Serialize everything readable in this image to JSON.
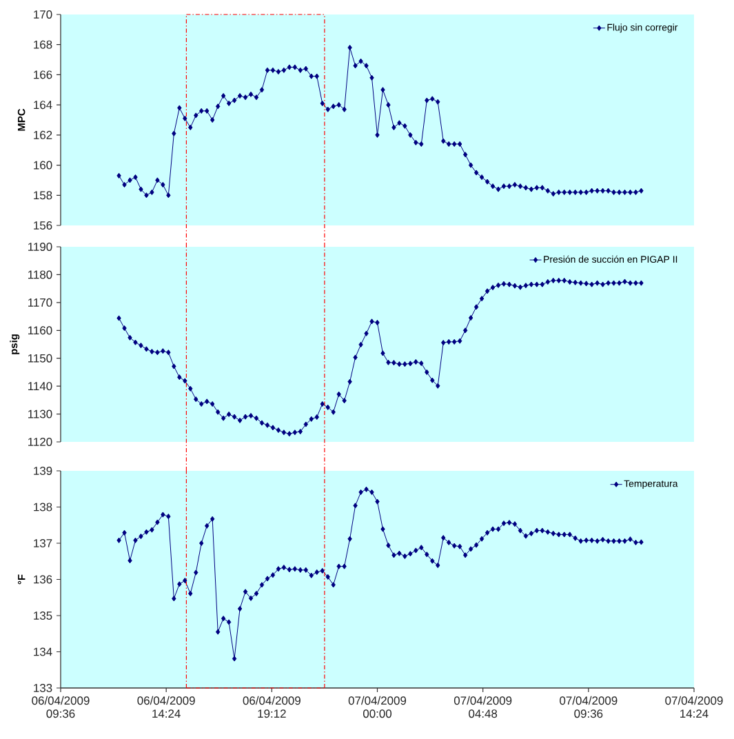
{
  "chart_data": [
    {
      "type": "line",
      "ylabel": "MPC",
      "legend": "top right",
      "marker": "diamond",
      "tick_labels": "y",
      "xlim": [
        "2009-04-06T09:36",
        "2009-04-07T14:24"
      ],
      "ylim": [
        156,
        170
      ],
      "yticks": [
        156,
        158,
        160,
        162,
        164,
        166,
        168,
        170
      ],
      "ref_lines": [
        {
          "axis": "x",
          "value": "2009-04-06T15:19",
          "color": "#ff0000",
          "line_style": "dashed"
        },
        {
          "axis": "x",
          "value": "2009-04-06T21:36",
          "color": "#ff0000",
          "line_style": "dashed"
        }
      ],
      "x": [
        "2009-04-06T12:15",
        "2009-04-06T12:30",
        "2009-04-06T12:45",
        "2009-04-06T13:00",
        "2009-04-06T13:15",
        "2009-04-06T13:30",
        "2009-04-06T13:45",
        "2009-04-06T14:00",
        "2009-04-06T14:15",
        "2009-04-06T14:30",
        "2009-04-06T14:45",
        "2009-04-06T15:00",
        "2009-04-06T15:15",
        "2009-04-06T15:30",
        "2009-04-06T15:45",
        "2009-04-06T16:00",
        "2009-04-06T16:15",
        "2009-04-06T16:30",
        "2009-04-06T16:45",
        "2009-04-06T17:00",
        "2009-04-06T17:15",
        "2009-04-06T17:30",
        "2009-04-06T17:45",
        "2009-04-06T18:00",
        "2009-04-06T18:15",
        "2009-04-06T18:30",
        "2009-04-06T18:45",
        "2009-04-06T19:00",
        "2009-04-06T19:15",
        "2009-04-06T19:30",
        "2009-04-06T19:45",
        "2009-04-06T20:00",
        "2009-04-06T20:15",
        "2009-04-06T20:30",
        "2009-04-06T20:45",
        "2009-04-06T21:00",
        "2009-04-06T21:15",
        "2009-04-06T21:30",
        "2009-04-06T21:45",
        "2009-04-06T22:00",
        "2009-04-06T22:15",
        "2009-04-06T22:30",
        "2009-04-06T22:45",
        "2009-04-06T23:00",
        "2009-04-06T23:15",
        "2009-04-06T23:30",
        "2009-04-06T23:45",
        "2009-04-07T00:00",
        "2009-04-07T00:15",
        "2009-04-07T00:30",
        "2009-04-07T00:45",
        "2009-04-07T01:00",
        "2009-04-07T01:15",
        "2009-04-07T01:30",
        "2009-04-07T01:45",
        "2009-04-07T02:00",
        "2009-04-07T02:15",
        "2009-04-07T02:30",
        "2009-04-07T02:45",
        "2009-04-07T03:00",
        "2009-04-07T03:15",
        "2009-04-07T03:30",
        "2009-04-07T03:45",
        "2009-04-07T04:00",
        "2009-04-07T04:15",
        "2009-04-07T04:30",
        "2009-04-07T04:45",
        "2009-04-07T05:00",
        "2009-04-07T05:15",
        "2009-04-07T05:30",
        "2009-04-07T05:45",
        "2009-04-07T06:00",
        "2009-04-07T06:15",
        "2009-04-07T06:30",
        "2009-04-07T06:45",
        "2009-04-07T07:00",
        "2009-04-07T07:15",
        "2009-04-07T07:30",
        "2009-04-07T07:45",
        "2009-04-07T08:00",
        "2009-04-07T08:15",
        "2009-04-07T08:30",
        "2009-04-07T08:45",
        "2009-04-07T09:00",
        "2009-04-07T09:15",
        "2009-04-07T09:30",
        "2009-04-07T09:45",
        "2009-04-07T10:00",
        "2009-04-07T10:15",
        "2009-04-07T10:30",
        "2009-04-07T10:45",
        "2009-04-07T11:00",
        "2009-04-07T11:15",
        "2009-04-07T11:30",
        "2009-04-07T11:45",
        "2009-04-07T12:00"
      ],
      "series": [
        {
          "name": "Flujo sin corregir",
          "color": "#000080",
          "values": [
            159.3,
            158.7,
            159.0,
            159.2,
            158.4,
            158.0,
            158.2,
            159.0,
            158.7,
            158.0,
            162.1,
            163.8,
            163.1,
            162.5,
            163.3,
            163.6,
            163.6,
            163.0,
            163.9,
            164.6,
            164.1,
            164.3,
            164.6,
            164.5,
            164.7,
            164.5,
            165.0,
            166.3,
            166.3,
            166.2,
            166.3,
            166.5,
            166.5,
            166.3,
            166.4,
            165.9,
            165.9,
            164.1,
            163.7,
            163.9,
            164.0,
            163.7,
            167.8,
            166.6,
            166.9,
            166.6,
            165.8,
            162.0,
            165.0,
            164.0,
            162.5,
            162.8,
            162.6,
            162.0,
            161.5,
            161.4,
            164.3,
            164.4,
            164.2,
            161.6,
            161.4,
            161.4,
            161.4,
            160.7,
            160.0,
            159.5,
            159.2,
            158.9,
            158.6,
            158.4,
            158.6,
            158.6,
            158.7,
            158.6,
            158.5,
            158.4,
            158.5,
            158.5,
            158.3,
            158.1,
            158.2,
            158.2,
            158.2,
            158.2,
            158.2,
            158.2,
            158.3,
            158.3,
            158.3,
            158.3,
            158.2,
            158.2,
            158.2,
            158.2,
            158.2,
            158.3
          ]
        }
      ]
    },
    {
      "type": "line",
      "ylabel": "psig",
      "legend": "top right",
      "marker": "diamond",
      "tick_labels": "y",
      "xlim": [
        "2009-04-06T09:36",
        "2009-04-07T14:24"
      ],
      "ylim": [
        1120,
        1190
      ],
      "yticks": [
        1120,
        1130,
        1140,
        1150,
        1160,
        1170,
        1180,
        1190
      ],
      "ref_lines": [
        {
          "axis": "x",
          "value": "2009-04-06T15:19",
          "color": "#ff0000",
          "line_style": "dashed"
        },
        {
          "axis": "x",
          "value": "2009-04-06T21:36",
          "color": "#ff0000",
          "line_style": "dashed"
        }
      ],
      "x": [
        "2009-04-06T12:15",
        "2009-04-06T12:30",
        "2009-04-06T12:45",
        "2009-04-06T13:00",
        "2009-04-06T13:15",
        "2009-04-06T13:30",
        "2009-04-06T13:45",
        "2009-04-06T14:00",
        "2009-04-06T14:15",
        "2009-04-06T14:30",
        "2009-04-06T14:45",
        "2009-04-06T15:00",
        "2009-04-06T15:15",
        "2009-04-06T15:30",
        "2009-04-06T15:45",
        "2009-04-06T16:00",
        "2009-04-06T16:15",
        "2009-04-06T16:30",
        "2009-04-06T16:45",
        "2009-04-06T17:00",
        "2009-04-06T17:15",
        "2009-04-06T17:30",
        "2009-04-06T17:45",
        "2009-04-06T18:00",
        "2009-04-06T18:15",
        "2009-04-06T18:30",
        "2009-04-06T18:45",
        "2009-04-06T19:00",
        "2009-04-06T19:15",
        "2009-04-06T19:30",
        "2009-04-06T19:45",
        "2009-04-06T20:00",
        "2009-04-06T20:15",
        "2009-04-06T20:30",
        "2009-04-06T20:45",
        "2009-04-06T21:00",
        "2009-04-06T21:15",
        "2009-04-06T21:30",
        "2009-04-06T21:45",
        "2009-04-06T22:00",
        "2009-04-06T22:15",
        "2009-04-06T22:30",
        "2009-04-06T22:45",
        "2009-04-06T23:00",
        "2009-04-06T23:15",
        "2009-04-06T23:30",
        "2009-04-06T23:45",
        "2009-04-07T00:00",
        "2009-04-07T00:15",
        "2009-04-07T00:30",
        "2009-04-07T00:45",
        "2009-04-07T01:00",
        "2009-04-07T01:15",
        "2009-04-07T01:30",
        "2009-04-07T01:45",
        "2009-04-07T02:00",
        "2009-04-07T02:15",
        "2009-04-07T02:30",
        "2009-04-07T02:45",
        "2009-04-07T03:00",
        "2009-04-07T03:15",
        "2009-04-07T03:30",
        "2009-04-07T03:45",
        "2009-04-07T04:00",
        "2009-04-07T04:15",
        "2009-04-07T04:30",
        "2009-04-07T04:45",
        "2009-04-07T05:00",
        "2009-04-07T05:15",
        "2009-04-07T05:30",
        "2009-04-07T05:45",
        "2009-04-07T06:00",
        "2009-04-07T06:15",
        "2009-04-07T06:30",
        "2009-04-07T06:45",
        "2009-04-07T07:00",
        "2009-04-07T07:15",
        "2009-04-07T07:30",
        "2009-04-07T07:45",
        "2009-04-07T08:00",
        "2009-04-07T08:15",
        "2009-04-07T08:30",
        "2009-04-07T08:45",
        "2009-04-07T09:00",
        "2009-04-07T09:15",
        "2009-04-07T09:30",
        "2009-04-07T09:45",
        "2009-04-07T10:00",
        "2009-04-07T10:15",
        "2009-04-07T10:30",
        "2009-04-07T10:45",
        "2009-04-07T11:00",
        "2009-04-07T11:15",
        "2009-04-07T11:30",
        "2009-04-07T11:45",
        "2009-04-07T12:00"
      ],
      "series": [
        {
          "name": "Presión de succión en PIGAP II",
          "color": "#000080",
          "values": [
            1164.4,
            1160.8,
            1157.4,
            1155.7,
            1154.6,
            1153.3,
            1152.4,
            1152.1,
            1152.6,
            1152.1,
            1147.1,
            1143.2,
            1141.9,
            1139.1,
            1135.3,
            1133.6,
            1134.5,
            1133.6,
            1130.7,
            1128.5,
            1129.9,
            1129.0,
            1127.7,
            1129.0,
            1129.4,
            1128.5,
            1126.8,
            1126.0,
            1125.1,
            1124.2,
            1123.4,
            1122.9,
            1123.4,
            1123.7,
            1126.3,
            1128.2,
            1128.9,
            1133.6,
            1132.4,
            1130.7,
            1137.1,
            1134.8,
            1141.6,
            1150.3,
            1154.9,
            1158.9,
            1163.2,
            1162.8,
            1151.8,
            1148.5,
            1148.4,
            1147.9,
            1147.9,
            1148.1,
            1148.7,
            1148.2,
            1145.0,
            1142.1,
            1140.1,
            1155.6,
            1155.9,
            1155.9,
            1156.2,
            1160.0,
            1164.5,
            1168.4,
            1171.4,
            1174.1,
            1175.4,
            1176.2,
            1176.7,
            1176.5,
            1176.0,
            1175.5,
            1176.1,
            1176.5,
            1176.5,
            1176.5,
            1177.4,
            1177.9,
            1177.9,
            1177.9,
            1177.4,
            1177.2,
            1177.0,
            1176.8,
            1176.5,
            1177.0,
            1176.5,
            1177.0,
            1177.0,
            1177.0,
            1177.5,
            1177.0,
            1177.0,
            1177.0
          ]
        }
      ]
    },
    {
      "type": "line",
      "ylabel": "°F",
      "legend": "top right",
      "marker": "diamond",
      "xlim": [
        "2009-04-06T09:36",
        "2009-04-07T14:24"
      ],
      "xticks": [
        {
          "value": "2009-04-06T09:36",
          "label": "06/04/2009 09:36"
        },
        {
          "value": "2009-04-06T14:24",
          "label": "06/04/2009 14:24"
        },
        {
          "value": "2009-04-06T19:12",
          "label": "06/04/2009 19:12"
        },
        {
          "value": "2009-04-07T00:00",
          "label": "07/04/2009 00:00"
        },
        {
          "value": "2009-04-07T04:48",
          "label": "07/04/2009 04:48"
        },
        {
          "value": "2009-04-07T09:36",
          "label": "07/04/2009 09:36"
        },
        {
          "value": "2009-04-07T14:24",
          "label": "07/04/2009 14:24"
        }
      ],
      "ylim": [
        133,
        139
      ],
      "yticks": [
        133,
        134,
        135,
        136,
        137,
        138,
        139
      ],
      "ref_lines": [
        {
          "axis": "x",
          "value": "2009-04-06T15:19",
          "color": "#ff0000",
          "line_style": "dashed"
        },
        {
          "axis": "x",
          "value": "2009-04-06T21:36",
          "color": "#ff0000",
          "line_style": "dashed"
        }
      ],
      "x": [
        "2009-04-06T12:15",
        "2009-04-06T12:30",
        "2009-04-06T12:45",
        "2009-04-06T13:00",
        "2009-04-06T13:15",
        "2009-04-06T13:30",
        "2009-04-06T13:45",
        "2009-04-06T14:00",
        "2009-04-06T14:15",
        "2009-04-06T14:30",
        "2009-04-06T14:45",
        "2009-04-06T15:00",
        "2009-04-06T15:15",
        "2009-04-06T15:30",
        "2009-04-06T15:45",
        "2009-04-06T16:00",
        "2009-04-06T16:15",
        "2009-04-06T16:30",
        "2009-04-06T16:45",
        "2009-04-06T17:00",
        "2009-04-06T17:15",
        "2009-04-06T17:30",
        "2009-04-06T17:45",
        "2009-04-06T18:00",
        "2009-04-06T18:15",
        "2009-04-06T18:30",
        "2009-04-06T18:45",
        "2009-04-06T19:00",
        "2009-04-06T19:15",
        "2009-04-06T19:30",
        "2009-04-06T19:45",
        "2009-04-06T20:00",
        "2009-04-06T20:15",
        "2009-04-06T20:30",
        "2009-04-06T20:45",
        "2009-04-06T21:00",
        "2009-04-06T21:15",
        "2009-04-06T21:30",
        "2009-04-06T21:45",
        "2009-04-06T22:00",
        "2009-04-06T22:15",
        "2009-04-06T22:30",
        "2009-04-06T22:45",
        "2009-04-06T23:00",
        "2009-04-06T23:15",
        "2009-04-06T23:30",
        "2009-04-06T23:45",
        "2009-04-07T00:00",
        "2009-04-07T00:15",
        "2009-04-07T00:30",
        "2009-04-07T00:45",
        "2009-04-07T01:00",
        "2009-04-07T01:15",
        "2009-04-07T01:30",
        "2009-04-07T01:45",
        "2009-04-07T02:00",
        "2009-04-07T02:15",
        "2009-04-07T02:30",
        "2009-04-07T02:45",
        "2009-04-07T03:00",
        "2009-04-07T03:15",
        "2009-04-07T03:30",
        "2009-04-07T03:45",
        "2009-04-07T04:00",
        "2009-04-07T04:15",
        "2009-04-07T04:30",
        "2009-04-07T04:45",
        "2009-04-07T05:00",
        "2009-04-07T05:15",
        "2009-04-07T05:30",
        "2009-04-07T05:45",
        "2009-04-07T06:00",
        "2009-04-07T06:15",
        "2009-04-07T06:30",
        "2009-04-07T06:45",
        "2009-04-07T07:00",
        "2009-04-07T07:15",
        "2009-04-07T07:30",
        "2009-04-07T07:45",
        "2009-04-07T08:00",
        "2009-04-07T08:15",
        "2009-04-07T08:30",
        "2009-04-07T08:45",
        "2009-04-07T09:00",
        "2009-04-07T09:15",
        "2009-04-07T09:30",
        "2009-04-07T09:45",
        "2009-04-07T10:00",
        "2009-04-07T10:15",
        "2009-04-07T10:30",
        "2009-04-07T10:45",
        "2009-04-07T11:00",
        "2009-04-07T11:15",
        "2009-04-07T11:30",
        "2009-04-07T11:45",
        "2009-04-07T12:00"
      ],
      "series": [
        {
          "name": "Temperatura",
          "color": "#000080",
          "values": [
            137.08,
            137.29,
            136.52,
            137.08,
            137.19,
            137.31,
            137.37,
            137.58,
            137.79,
            137.74,
            135.47,
            135.87,
            135.97,
            135.61,
            136.19,
            137.0,
            137.48,
            137.67,
            134.55,
            134.92,
            134.82,
            133.81,
            135.19,
            135.66,
            135.48,
            135.61,
            135.85,
            136.02,
            136.12,
            136.29,
            136.33,
            136.27,
            136.29,
            136.26,
            136.26,
            136.11,
            136.2,
            136.24,
            136.07,
            135.85,
            136.36,
            136.36,
            137.12,
            138.04,
            138.41,
            138.49,
            138.41,
            138.15,
            137.39,
            136.94,
            136.67,
            136.72,
            136.64,
            136.71,
            136.8,
            136.88,
            136.69,
            136.51,
            136.39,
            137.15,
            137.02,
            136.93,
            136.91,
            136.67,
            136.84,
            136.95,
            137.12,
            137.29,
            137.39,
            137.39,
            137.55,
            137.57,
            137.53,
            137.35,
            137.2,
            137.27,
            137.35,
            137.35,
            137.31,
            137.27,
            137.24,
            137.24,
            137.24,
            137.14,
            137.06,
            137.08,
            137.08,
            137.06,
            137.1,
            137.06,
            137.06,
            137.06,
            137.06,
            137.11,
            137.02,
            137.03
          ]
        }
      ]
    }
  ]
}
